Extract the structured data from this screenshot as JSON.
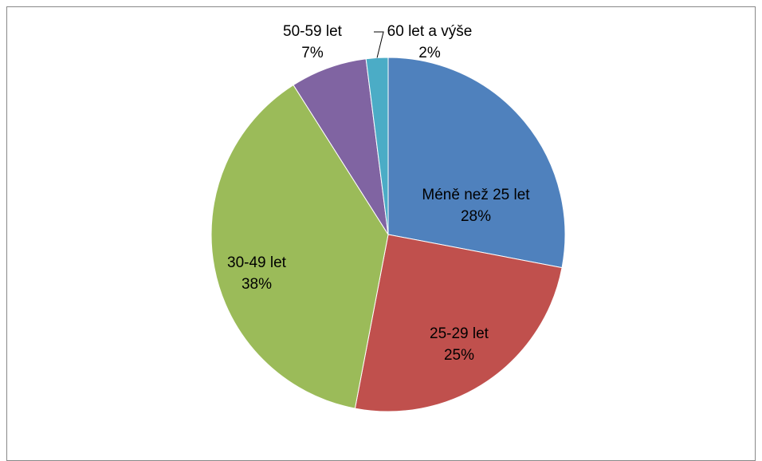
{
  "chart_data": {
    "type": "pie",
    "categories": [
      "Méně než 25 let",
      "25-29 let",
      "30-49 let",
      "50-59 let",
      "60 let a výše"
    ],
    "values": [
      28,
      25,
      38,
      7,
      2
    ],
    "value_labels": [
      "28%",
      "25%",
      "38%",
      "7%",
      "2%"
    ],
    "colors": [
      "#4f81bd",
      "#c0504d",
      "#9bbb59",
      "#8064a2",
      "#4bacc6"
    ]
  }
}
